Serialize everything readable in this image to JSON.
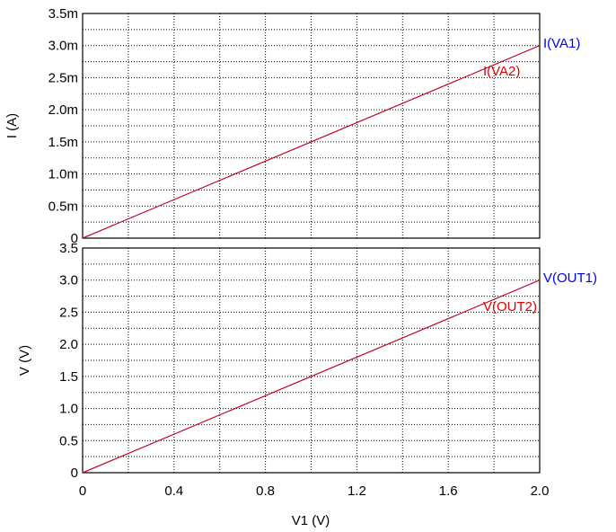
{
  "chart_data": [
    {
      "type": "line",
      "xlabel": "",
      "ylabel": "I  (A)",
      "xlim": [
        0,
        2.0
      ],
      "ylim": [
        0,
        0.0035
      ],
      "grid": true,
      "x_ticks": [],
      "y_ticks": [
        {
          "value": 0,
          "label": "0"
        },
        {
          "value": 0.0005,
          "label": "0.5m"
        },
        {
          "value": 0.001,
          "label": "1.0m"
        },
        {
          "value": 0.0015,
          "label": "1.5m"
        },
        {
          "value": 0.002,
          "label": "2.0m"
        },
        {
          "value": 0.0025,
          "label": "2.5m"
        },
        {
          "value": 0.003,
          "label": "3.0m"
        },
        {
          "value": 0.0035,
          "label": "3.5m"
        }
      ],
      "series": [
        {
          "name": "I(VA1)",
          "color": "#0000ee",
          "x": [
            0,
            2.0
          ],
          "y": [
            0,
            0.003
          ]
        },
        {
          "name": "I(VA2)",
          "color": "#e00000",
          "x": [
            0,
            2.0
          ],
          "y": [
            0,
            0.003
          ]
        }
      ]
    },
    {
      "type": "line",
      "xlabel": "V1  (V)",
      "ylabel": "V  (V)",
      "xlim": [
        0,
        2.0
      ],
      "ylim": [
        0,
        3.5
      ],
      "grid": true,
      "x_ticks": [
        {
          "value": 0,
          "label": "0"
        },
        {
          "value": 0.4,
          "label": "0.4"
        },
        {
          "value": 0.8,
          "label": "0.8"
        },
        {
          "value": 1.2,
          "label": "1.2"
        },
        {
          "value": 1.6,
          "label": "1.6"
        },
        {
          "value": 2.0,
          "label": "2.0"
        }
      ],
      "y_ticks": [
        {
          "value": 0,
          "label": "0"
        },
        {
          "value": 0.5,
          "label": "0.5"
        },
        {
          "value": 1.0,
          "label": "1.0"
        },
        {
          "value": 1.5,
          "label": "1.5"
        },
        {
          "value": 2.0,
          "label": "2.0"
        },
        {
          "value": 2.5,
          "label": "2.5"
        },
        {
          "value": 3.0,
          "label": "3.0"
        },
        {
          "value": 3.5,
          "label": "3.5"
        }
      ],
      "series": [
        {
          "name": "V(OUT1)",
          "color": "#0000ee",
          "x": [
            0,
            2.0
          ],
          "y": [
            0,
            3.0
          ]
        },
        {
          "name": "V(OUT2)",
          "color": "#e00000",
          "x": [
            0,
            2.0
          ],
          "y": [
            0,
            3.0
          ]
        }
      ]
    }
  ]
}
